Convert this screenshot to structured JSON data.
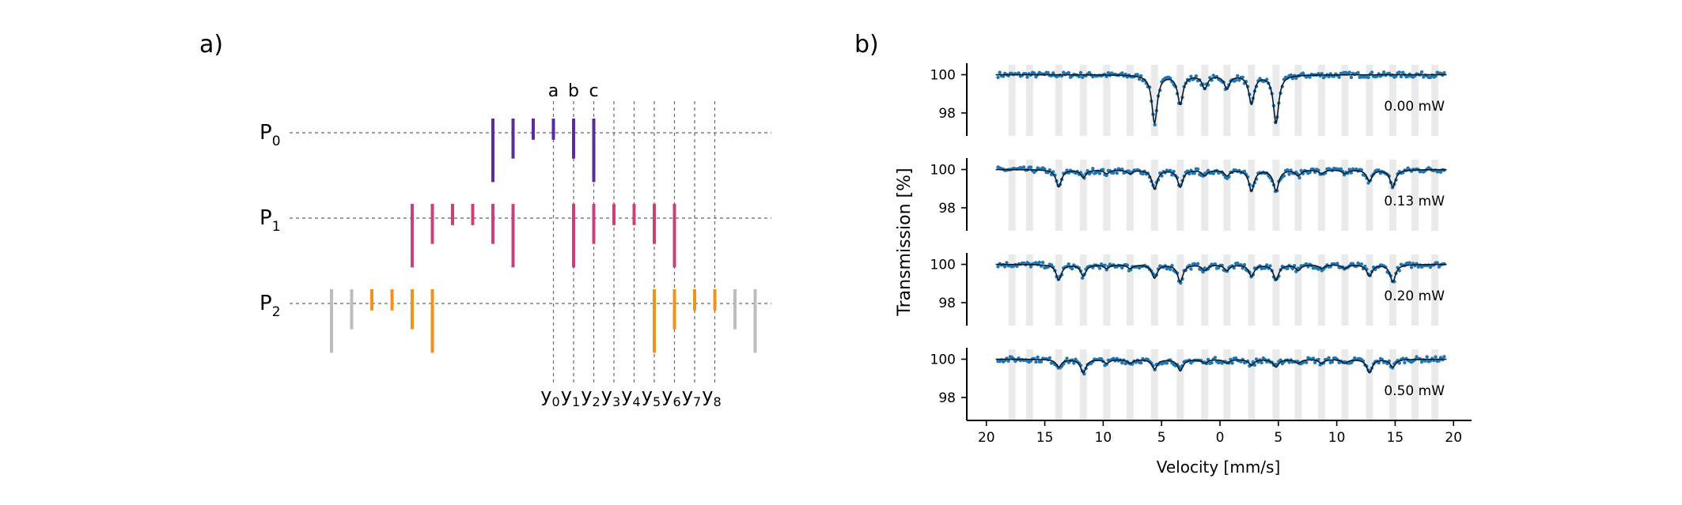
{
  "panel_a": {
    "label": "a)",
    "rows": [
      {
        "name": "P",
        "sub": "0",
        "color": "#5b2d9a",
        "lines": [
          {
            "pos": 10,
            "len": 2.5
          },
          {
            "pos": 11,
            "len": 1.5
          },
          {
            "pos": 12,
            "len": 0.7
          },
          {
            "pos": 13,
            "len": 0.7
          },
          {
            "pos": 14,
            "len": 1.5
          },
          {
            "pos": 15,
            "len": 2.5
          }
        ]
      },
      {
        "name": "P",
        "sub": "1",
        "color": "#c9407a",
        "lines": [
          {
            "pos": 6,
            "len": 2.5
          },
          {
            "pos": 7,
            "len": 1.5
          },
          {
            "pos": 8,
            "len": 0.7
          },
          {
            "pos": 9,
            "len": 0.7
          },
          {
            "pos": 10,
            "len": 1.5
          },
          {
            "pos": 11,
            "len": 2.5
          },
          {
            "pos": 14,
            "len": 2.5
          },
          {
            "pos": 15,
            "len": 1.5
          },
          {
            "pos": 16,
            "len": 0.7
          },
          {
            "pos": 17,
            "len": 0.7
          },
          {
            "pos": 18,
            "len": 1.5
          },
          {
            "pos": 19,
            "len": 2.5
          }
        ]
      },
      {
        "name": "P",
        "sub": "2",
        "color": "#f0921c",
        "lines": [
          {
            "pos": 2,
            "len": 2.5,
            "color": "#bdbdbd"
          },
          {
            "pos": 3,
            "len": 1.5,
            "color": "#bdbdbd"
          },
          {
            "pos": 4,
            "len": 0.7
          },
          {
            "pos": 5,
            "len": 0.7
          },
          {
            "pos": 6,
            "len": 1.5
          },
          {
            "pos": 7,
            "len": 2.5
          },
          {
            "pos": 18,
            "len": 2.5
          },
          {
            "pos": 19,
            "len": 1.5
          },
          {
            "pos": 20,
            "len": 0.7
          },
          {
            "pos": 21,
            "len": 0.7
          },
          {
            "pos": 22,
            "len": 1.5,
            "color": "#bdbdbd"
          },
          {
            "pos": 23,
            "len": 2.5,
            "color": "#bdbdbd"
          }
        ]
      }
    ],
    "top_labels": [
      "a",
      "b",
      "c"
    ],
    "y_labels": [
      {
        "base": "y",
        "sub": "0"
      },
      {
        "base": "y",
        "sub": "1"
      },
      {
        "base": "y",
        "sub": "2"
      },
      {
        "base": "y",
        "sub": "3"
      },
      {
        "base": "y",
        "sub": "4"
      },
      {
        "base": "y",
        "sub": "5"
      },
      {
        "base": "y",
        "sub": "6"
      },
      {
        "base": "y",
        "sub": "7"
      },
      {
        "base": "y",
        "sub": "8"
      }
    ],
    "y_positions": [
      13,
      14,
      15,
      16,
      17,
      18,
      19,
      20,
      21
    ]
  },
  "chart_data": {
    "type": "scatter",
    "panel_label": "b)",
    "xlabel": "Velocity [mm/s]",
    "ylabel": "Transmission [%]",
    "xlim": [
      21,
      -21
    ],
    "x_ticks": [
      20,
      15,
      10,
      5,
      0,
      -5,
      -10,
      -15,
      -20
    ],
    "x_tick_labels": [
      "20",
      "15",
      "10",
      "5",
      "0",
      "5",
      "10",
      "15",
      "20"
    ],
    "ylim": [
      96.8,
      100.6
    ],
    "y_ticks": [
      98,
      100
    ],
    "y_tick_labels": [
      "98",
      "100"
    ],
    "band_positions": [
      17.8,
      16.3,
      13.8,
      11.7,
      9.7,
      7.7,
      5.6,
      3.4,
      1.3,
      -0.6,
      -2.7,
      -4.8,
      -6.7,
      -8.7,
      -10.7,
      -12.8,
      -14.8,
      -16.7,
      -18.4
    ],
    "series": [
      {
        "name": "0.00 mW",
        "color": "#1f77b4",
        "dips": [
          {
            "v": 5.6,
            "d": 2.5
          },
          {
            "v": 3.4,
            "d": 1.5
          },
          {
            "v": 1.3,
            "d": 0.7
          },
          {
            "v": -0.6,
            "d": 0.7
          },
          {
            "v": -2.7,
            "d": 1.5
          },
          {
            "v": -4.8,
            "d": 2.5
          }
        ]
      },
      {
        "name": "0.13 mW",
        "color": "#1f77b4",
        "dips": [
          {
            "v": 13.8,
            "d": 0.9
          },
          {
            "v": 11.7,
            "d": 0.4
          },
          {
            "v": 9.7,
            "d": 0.2
          },
          {
            "v": 7.7,
            "d": 0.2
          },
          {
            "v": 5.6,
            "d": 1.0
          },
          {
            "v": 3.4,
            "d": 0.9
          },
          {
            "v": 1.3,
            "d": 0.3
          },
          {
            "v": -0.6,
            "d": 0.3
          },
          {
            "v": -2.7,
            "d": 1.1
          },
          {
            "v": -4.8,
            "d": 1.1
          },
          {
            "v": -6.7,
            "d": 0.3
          },
          {
            "v": -8.7,
            "d": 0.2
          },
          {
            "v": -10.7,
            "d": 0.2
          },
          {
            "v": -12.8,
            "d": 0.6
          },
          {
            "v": -14.8,
            "d": 0.9
          }
        ]
      },
      {
        "name": "0.20 mW",
        "color": "#1f77b4",
        "dips": [
          {
            "v": 13.8,
            "d": 0.8
          },
          {
            "v": 11.7,
            "d": 0.6
          },
          {
            "v": 9.7,
            "d": 0.2
          },
          {
            "v": 7.7,
            "d": 0.2
          },
          {
            "v": 5.6,
            "d": 0.7
          },
          {
            "v": 3.4,
            "d": 0.9
          },
          {
            "v": 1.3,
            "d": 0.3
          },
          {
            "v": -0.6,
            "d": 0.3
          },
          {
            "v": -2.7,
            "d": 0.6
          },
          {
            "v": -4.8,
            "d": 0.8
          },
          {
            "v": -6.7,
            "d": 0.3
          },
          {
            "v": -8.7,
            "d": 0.2
          },
          {
            "v": -10.7,
            "d": 0.2
          },
          {
            "v": -12.8,
            "d": 0.6
          },
          {
            "v": -14.8,
            "d": 0.9
          }
        ]
      },
      {
        "name": "0.50 mW",
        "color": "#1f77b4",
        "dips": [
          {
            "v": 13.8,
            "d": 0.4
          },
          {
            "v": 11.7,
            "d": 0.7
          },
          {
            "v": 9.7,
            "d": 0.2
          },
          {
            "v": 7.7,
            "d": 0.2
          },
          {
            "v": 5.6,
            "d": 0.5
          },
          {
            "v": 3.4,
            "d": 0.6
          },
          {
            "v": 1.3,
            "d": 0.2
          },
          {
            "v": -0.6,
            "d": 0.2
          },
          {
            "v": -2.7,
            "d": 0.3
          },
          {
            "v": -4.8,
            "d": 0.4
          },
          {
            "v": -6.7,
            "d": 0.2
          },
          {
            "v": -8.7,
            "d": 0.2
          },
          {
            "v": -10.7,
            "d": 0.2
          },
          {
            "v": -12.8,
            "d": 0.7
          },
          {
            "v": -14.8,
            "d": 0.4
          }
        ]
      }
    ]
  }
}
